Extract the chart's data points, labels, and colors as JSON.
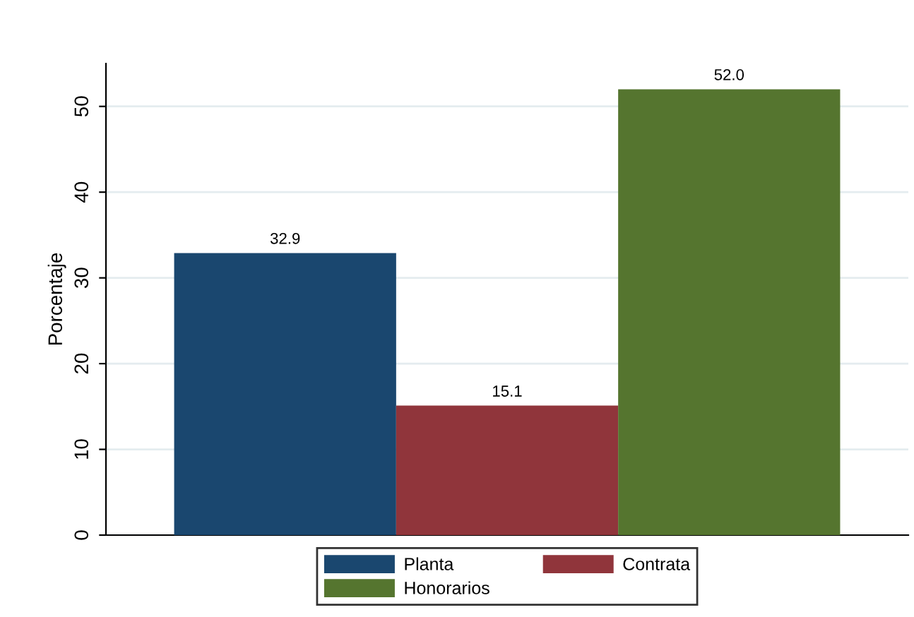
{
  "chart_data": {
    "type": "bar",
    "ylabel": "Porcentaje",
    "categories": [
      null
    ],
    "series": [
      {
        "name": "Planta",
        "color": "#1a476f",
        "values": [
          32.9
        ],
        "value_labels": [
          "32.9"
        ]
      },
      {
        "name": "Contrata",
        "color": "#90353b",
        "values": [
          15.1
        ],
        "value_labels": [
          "15.1"
        ]
      },
      {
        "name": "Honorarios",
        "color": "#55752f",
        "values": [
          52.0
        ],
        "value_labels": [
          "52.0"
        ]
      }
    ],
    "ylim": [
      0,
      55
    ],
    "yticks": [
      0,
      10,
      20,
      30,
      40,
      50
    ],
    "grid": "y",
    "legend": "bottom"
  }
}
